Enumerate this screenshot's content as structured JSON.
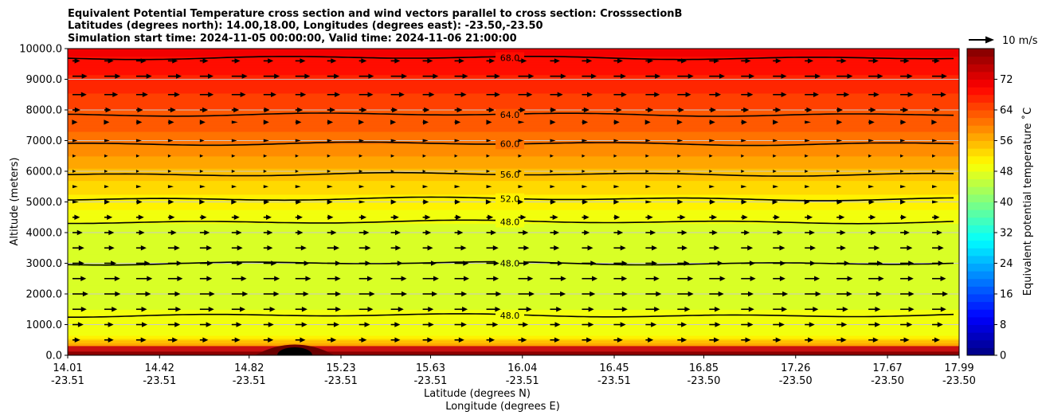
{
  "chart_data": {
    "type": "heatmap",
    "title_lines": [
      "Equivalent Potential Temperature cross section and wind vectors parallel to cross section: CrosssectionB",
      "Latitudes (degrees north): 14.00,18.00, Longitudes (degrees east): -23.50,-23.50",
      "Simulation start time: 2024-11-05 00:00:00, Valid time: 2024-11-06 21:00:00"
    ],
    "ylabel": "Altitude (meters)",
    "xlabel_1": "Latitude (degrees N)",
    "xlabel_2": "Longitude (degrees E)",
    "ylim": [
      0,
      10000
    ],
    "xlim": [
      14.01,
      17.99
    ],
    "y_ticks": [
      "0.0",
      "1000.0",
      "2000.0",
      "3000.0",
      "4000.0",
      "5000.0",
      "6000.0",
      "7000.0",
      "8000.0",
      "9000.0",
      "10000.0"
    ],
    "y_tick_values": [
      0,
      1000,
      2000,
      3000,
      4000,
      5000,
      6000,
      7000,
      8000,
      9000,
      10000
    ],
    "x_tick_values": [
      14.01,
      14.42,
      14.82,
      15.23,
      15.63,
      16.04,
      16.45,
      16.85,
      17.26,
      17.67,
      17.99
    ],
    "x_ticks_lat": [
      "14.01",
      "14.42",
      "14.82",
      "15.23",
      "15.63",
      "16.04",
      "16.45",
      "16.85",
      "17.26",
      "17.67",
      "17.99"
    ],
    "x_ticks_lon": [
      "-23.51",
      "-23.51",
      "-23.51",
      "-23.51",
      "-23.51",
      "-23.51",
      "-23.51",
      "-23.50",
      "-23.50",
      "-23.50",
      "-23.50"
    ],
    "grid": true,
    "colorbar": {
      "label": "Equivalent potential temperature ˚C",
      "range": [
        0,
        80
      ],
      "ticks": [
        "0",
        "8",
        "16",
        "24",
        "32",
        "40",
        "48",
        "56",
        "64",
        "72"
      ],
      "tick_values": [
        0,
        8,
        16,
        24,
        32,
        40,
        48,
        56,
        64,
        72
      ],
      "colormap": "jet"
    },
    "theta_e_profile": {
      "altitude_m": [
        0,
        300,
        700,
        1500,
        2500,
        3500,
        4300,
        5000,
        5700,
        6500,
        7300,
        8000,
        8800,
        9500,
        10000
      ],
      "value_C": [
        72,
        58,
        49,
        48,
        47,
        46,
        48,
        51,
        54,
        58,
        62,
        64,
        67,
        69,
        71
      ]
    },
    "contours": [
      {
        "level": "48.0",
        "altitude_m": 4350
      },
      {
        "level": "52.0",
        "altitude_m": 5100
      },
      {
        "level": "56.0",
        "altitude_m": 5900
      },
      {
        "level": "60.0",
        "altitude_m": 6900
      },
      {
        "level": "64.0",
        "altitude_m": 7850
      },
      {
        "level": "68.0",
        "altitude_m": 9700
      },
      {
        "level": "48.0",
        "altitude_m": 3000
      },
      {
        "level": "48.0",
        "altitude_m": 1300
      }
    ],
    "wind_key": {
      "label": "10 m/s",
      "speed_ms": 10
    },
    "wind_rows": [
      {
        "altitude_m": 9600,
        "speed_ms": 5
      },
      {
        "altitude_m": 9100,
        "speed_ms": 8
      },
      {
        "altitude_m": 8500,
        "speed_ms": 7
      },
      {
        "altitude_m": 8000,
        "speed_ms": 4
      },
      {
        "altitude_m": 7600,
        "speed_ms": 3
      },
      {
        "altitude_m": 7000,
        "speed_ms": 2
      },
      {
        "altitude_m": 6500,
        "speed_ms": 1
      },
      {
        "altitude_m": 6000,
        "speed_ms": 1
      },
      {
        "altitude_m": 5500,
        "speed_ms": 2
      },
      {
        "altitude_m": 5000,
        "speed_ms": 3
      },
      {
        "altitude_m": 4500,
        "speed_ms": 4
      },
      {
        "altitude_m": 4000,
        "speed_ms": 5
      },
      {
        "altitude_m": 3500,
        "speed_ms": 6
      },
      {
        "altitude_m": 3000,
        "speed_ms": 7
      },
      {
        "altitude_m": 2500,
        "speed_ms": 8
      },
      {
        "altitude_m": 2000,
        "speed_ms": 8
      },
      {
        "altitude_m": 1500,
        "speed_ms": 7
      },
      {
        "altitude_m": 1000,
        "speed_ms": 6
      },
      {
        "altitude_m": 500,
        "speed_ms": 5
      }
    ]
  }
}
